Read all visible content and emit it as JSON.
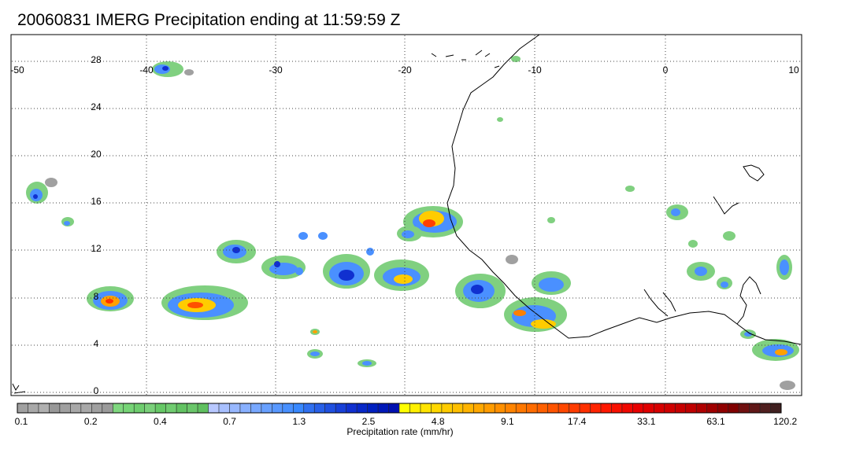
{
  "title": "20060831 IMERG Precipitation ending at 11:59:59 Z",
  "map": {
    "lon_ticks": [
      "-50",
      "-40",
      "-30",
      "-20",
      "-10",
      "0",
      "10"
    ],
    "lat_ticks": [
      "28",
      "24",
      "20",
      "16",
      "12",
      "8",
      "4",
      "0"
    ],
    "lon_range": [
      -50,
      10
    ],
    "lat_range": [
      -0.5,
      30
    ],
    "grid": "dotted"
  },
  "colorbar": {
    "label": "Precipitation rate (mm/hr)",
    "tick_labels": [
      "0.1",
      "0.2",
      "0.4",
      "0.7",
      "1.3",
      "2.5",
      "4.8",
      "9.1",
      "17.4",
      "33.1",
      "63.1",
      "120.2"
    ],
    "colors": [
      "#a0a0a0",
      "#a8a8a8",
      "#b0b0b0",
      "#989898",
      "#a0a0a0",
      "#a8a8a8",
      "#a8a8a8",
      "#a0a0a0",
      "#9a9a9a",
      "#7fd77f",
      "#76d476",
      "#6ecd6e",
      "#7ad07a",
      "#66c866",
      "#70cc70",
      "#62c262",
      "#6ac66a",
      "#60c060",
      "#b8c8ff",
      "#a8c0ff",
      "#98b8ff",
      "#88b0ff",
      "#78a8ff",
      "#68a0ff",
      "#5898ff",
      "#4890ff",
      "#3888ff",
      "#3070f0",
      "#2860e8",
      "#2050e0",
      "#1840d8",
      "#1030d0",
      "#0828c8",
      "#0020c0",
      "#0018b8",
      "#0010b0",
      "#ffff00",
      "#fff000",
      "#ffe400",
      "#ffd800",
      "#ffcc00",
      "#ffc000",
      "#ffb400",
      "#ffa800",
      "#ff9c00",
      "#ff9000",
      "#ff8400",
      "#ff7800",
      "#ff6c00",
      "#ff6000",
      "#ff5400",
      "#ff4800",
      "#ff3c00",
      "#ff3000",
      "#ff2400",
      "#ff1800",
      "#f81000",
      "#f00800",
      "#e80000",
      "#e00000",
      "#d80000",
      "#d00000",
      "#c80000",
      "#c00000",
      "#b00000",
      "#a00000",
      "#900000",
      "#800000",
      "#701010",
      "#601818",
      "#502020",
      "#402020"
    ]
  }
}
